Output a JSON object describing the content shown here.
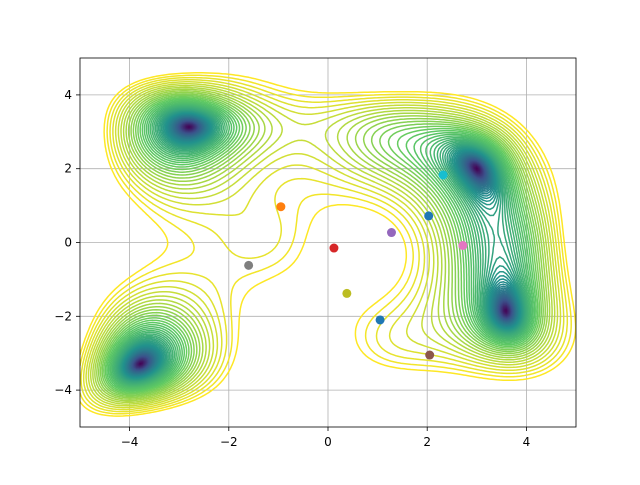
{
  "chart_data": {
    "type": "contour",
    "title": "",
    "xlabel": "",
    "ylabel": "",
    "xlim": [
      -5,
      5
    ],
    "ylim": [
      -5,
      5
    ],
    "grid": true,
    "x_ticks": [
      -4,
      -2,
      0,
      2,
      4
    ],
    "y_ticks": [
      -4,
      -2,
      0,
      2,
      4
    ],
    "x_tick_labels": [
      "−4",
      "−2",
      "0",
      "2",
      "4"
    ],
    "y_tick_labels": [
      "4",
      "2",
      "0",
      "−2",
      "−4"
    ],
    "y_tick_values": [
      4,
      2,
      0,
      -2,
      -4
    ],
    "colormap": [
      "#440154",
      "#3b528b",
      "#21918c",
      "#5ec962",
      "#fde725"
    ],
    "points": [
      {
        "x": -0.95,
        "y": 0.97,
        "color": "#ff7f0e"
      },
      {
        "x": 0.12,
        "y": -0.15,
        "color": "#d62728"
      },
      {
        "x": 1.28,
        "y": 0.27,
        "color": "#9467bd"
      },
      {
        "x": 2.32,
        "y": 1.83,
        "color": "#17becf"
      },
      {
        "x": 2.03,
        "y": 0.72,
        "color": "#1f77b4"
      },
      {
        "x": 2.72,
        "y": -0.08,
        "color": "#e377c2"
      },
      {
        "x": -1.6,
        "y": -0.62,
        "color": "#7f7f7f"
      },
      {
        "x": 0.38,
        "y": -1.38,
        "color": "#bcbd22"
      },
      {
        "x": 1.05,
        "y": -2.1,
        "color": "#1f77b4"
      },
      {
        "x": 2.05,
        "y": -3.05,
        "color": "#8c564b"
      }
    ]
  }
}
